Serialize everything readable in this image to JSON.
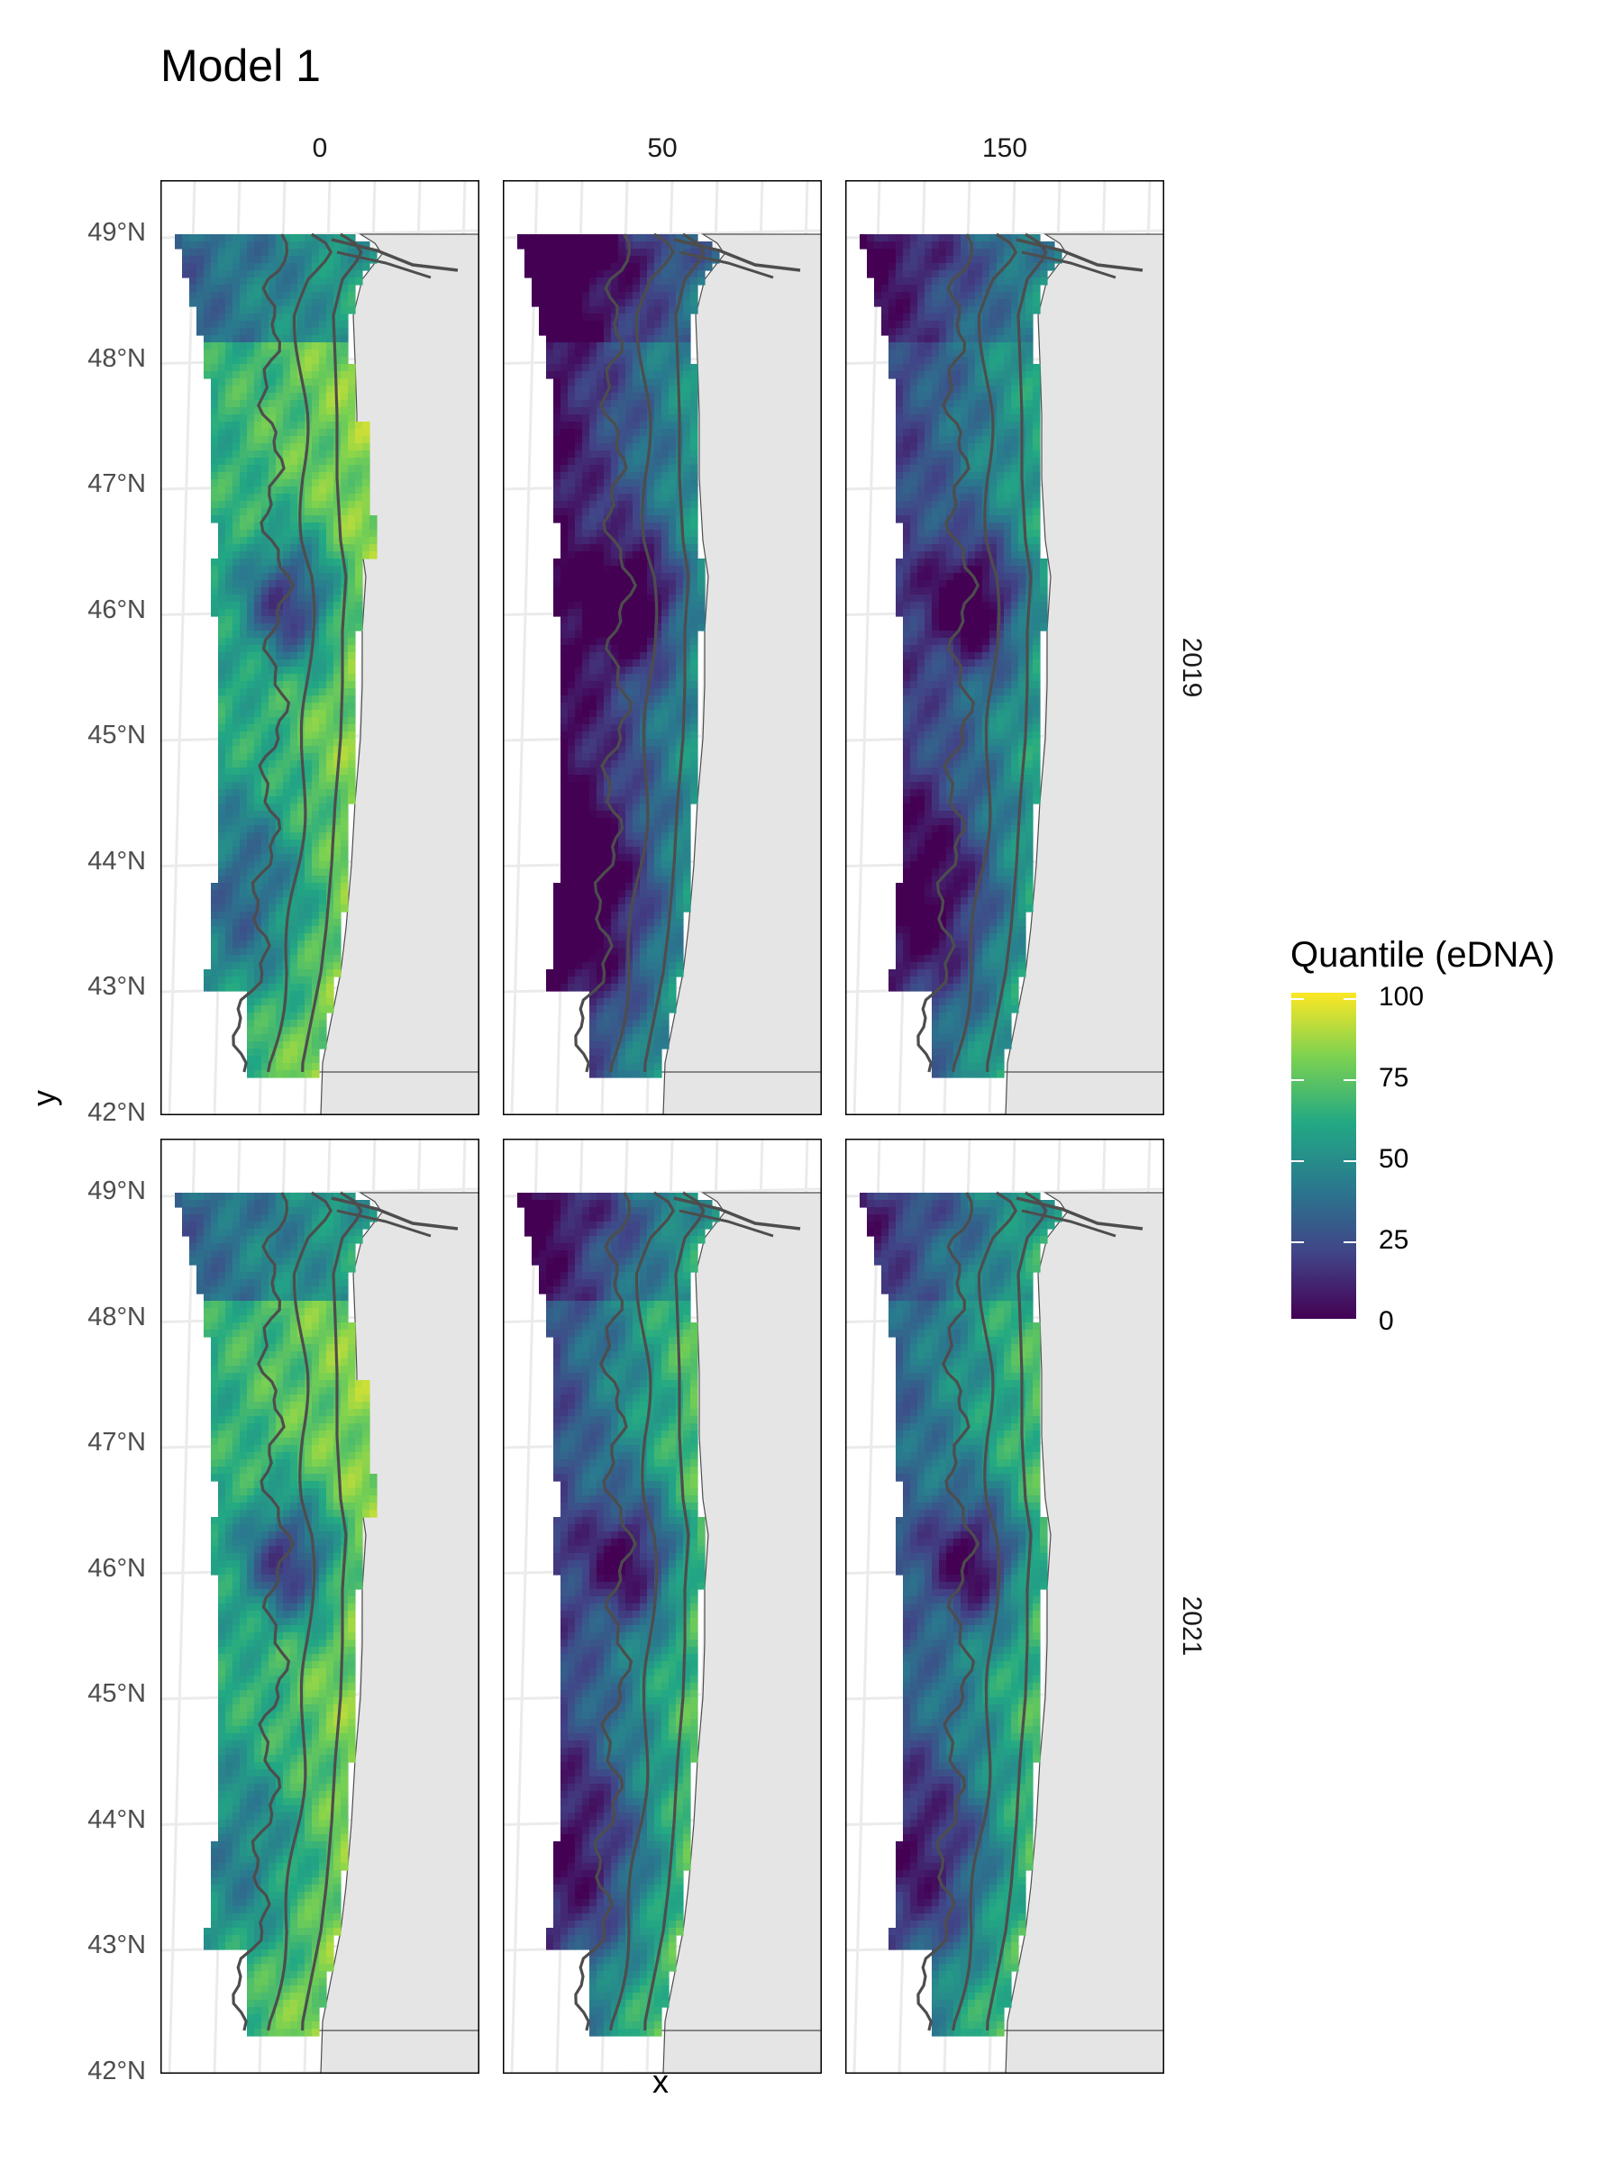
{
  "title": "Model 1",
  "x_axis_title": "x",
  "y_axis_title": "y",
  "columns": [
    "0",
    "50",
    "150"
  ],
  "rows": [
    "2019",
    "2021"
  ],
  "y_ticks": [
    "49°N",
    "48°N",
    "47°N",
    "46°N",
    "45°N",
    "44°N",
    "43°N",
    "42°N"
  ],
  "legend": {
    "title": "Quantile (eDNA)",
    "labels": [
      "100",
      "75",
      "50",
      "25",
      "0"
    ],
    "colors": [
      "#440154",
      "#414487",
      "#2a788e",
      "#22a884",
      "#7ad151",
      "#fde725"
    ]
  },
  "colors": {
    "land": "#e5e5e5",
    "contour": "#4d4d4d",
    "grid": "#ebebeb"
  }
}
